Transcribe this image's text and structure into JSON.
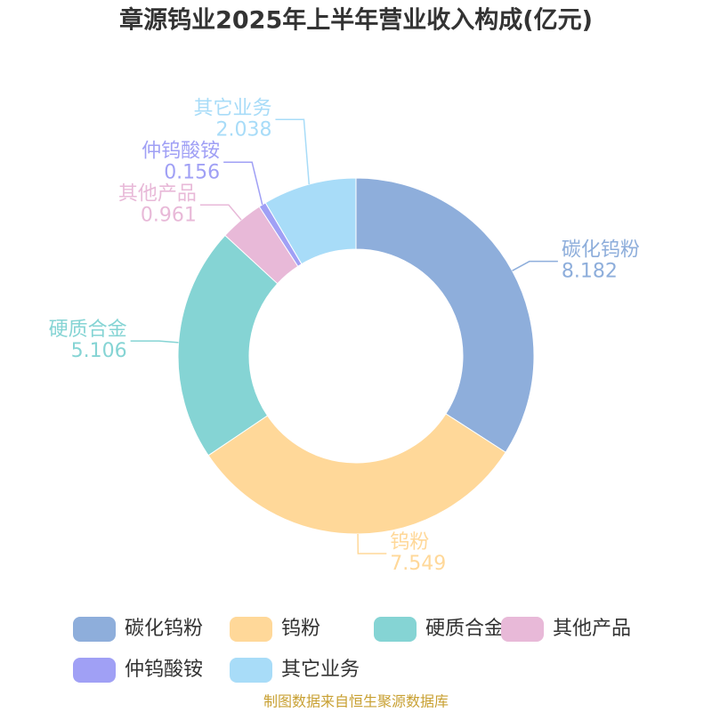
{
  "chart_data": {
    "type": "donut",
    "title": "章源钨业2025年上半年营业收入构成(亿元)",
    "categories": [
      "碳化钨粉",
      "钨粉",
      "硬质合金",
      "其他产品",
      "仲钨酸铵",
      "其它业务"
    ],
    "values": [
      8.182,
      7.549,
      5.106,
      0.961,
      0.156,
      2.038
    ],
    "colors": [
      "#8eaedb",
      "#ffd899",
      "#85d4d4",
      "#e8b9d8",
      "#a0a0f5",
      "#a8dcf8"
    ],
    "source": "制图数据来自恒生聚源数据库"
  }
}
